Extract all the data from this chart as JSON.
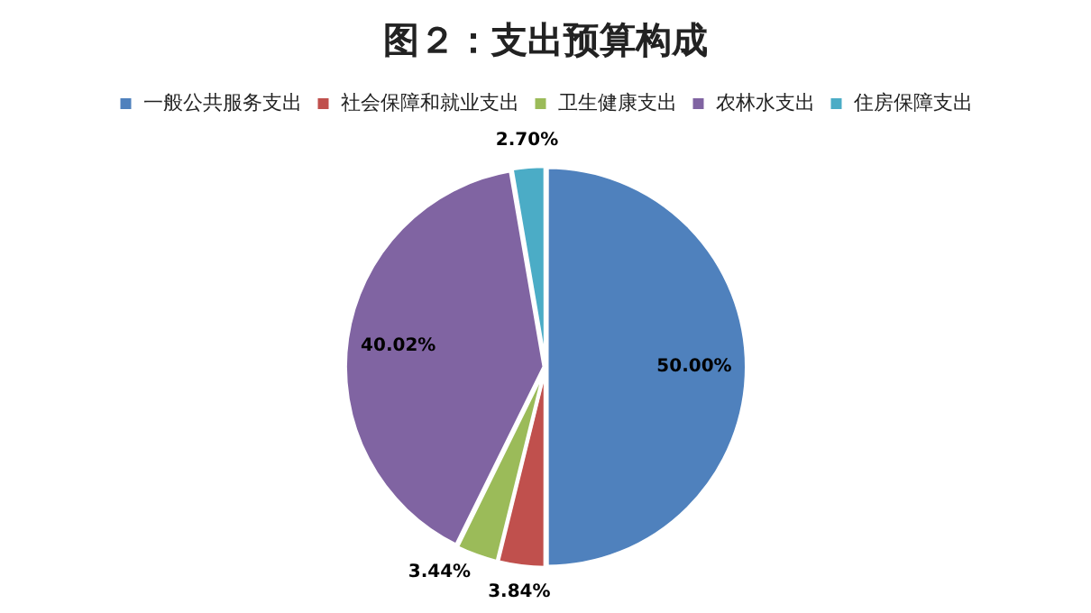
{
  "chart_data": {
    "type": "pie",
    "title": "图２：支出预算构成",
    "categories": [
      "一般公共服务支出",
      "社会保障和就业支出",
      "卫生健康支出",
      "农林水支出",
      "住房保障支出"
    ],
    "values": [
      50.0,
      3.84,
      3.44,
      40.02,
      2.7
    ],
    "colors": [
      "#4f81bd",
      "#c0504d",
      "#9bbb59",
      "#8064a2",
      "#4bacc6"
    ],
    "value_labels": [
      "50.00%",
      "3.84%",
      "3.44%",
      "40.02%",
      "2.70%"
    ],
    "legend": "top"
  }
}
